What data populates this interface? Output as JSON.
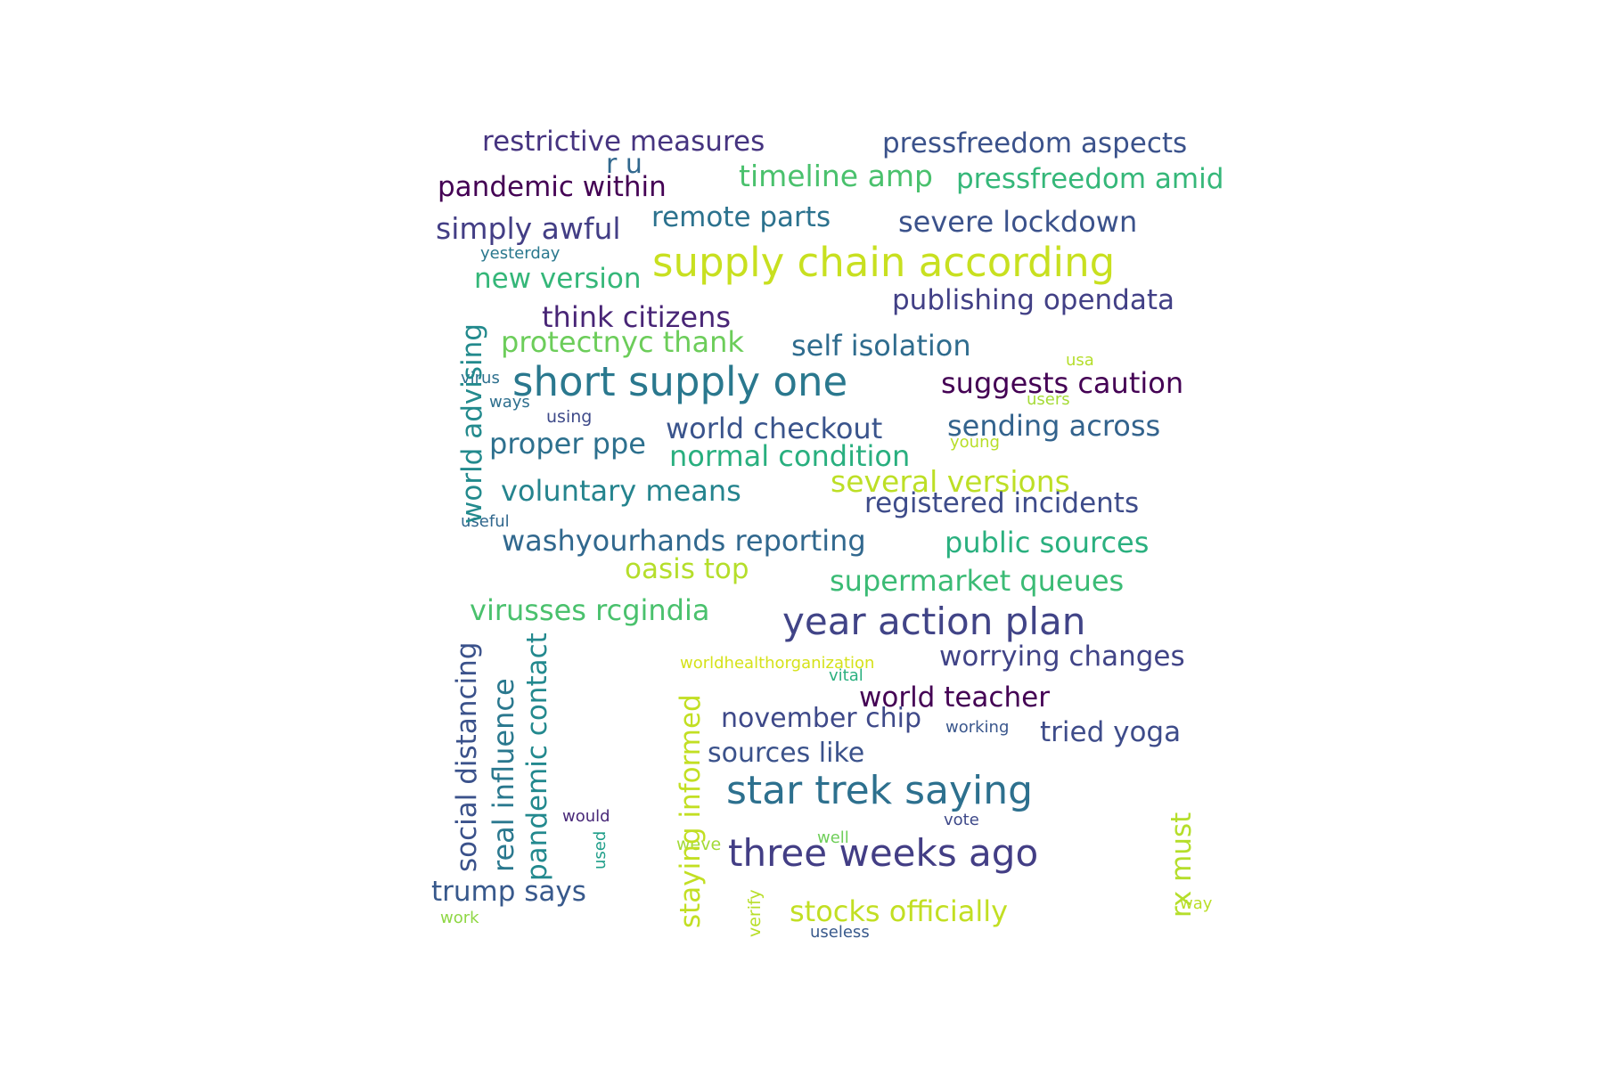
{
  "words": [
    {
      "text": "restrictive measures",
      "color": "#463480"
    },
    {
      "text": "pressfreedom aspects",
      "color": "#3b528b"
    },
    {
      "text": "r u",
      "color": "#31688e"
    },
    {
      "text": "timeline amp",
      "color": "#4ac16d"
    },
    {
      "text": "pressfreedom amid",
      "color": "#35b779"
    },
    {
      "text": "pandemic within",
      "color": "#440154"
    },
    {
      "text": "remote parts",
      "color": "#2c728e"
    },
    {
      "text": "severe lockdown",
      "color": "#3b528b"
    },
    {
      "text": "simply awful",
      "color": "#433e85"
    },
    {
      "text": "yesterday",
      "color": "#2a788e"
    },
    {
      "text": "supply chain according",
      "color": "#c8e020"
    },
    {
      "text": "new version",
      "color": "#35b779"
    },
    {
      "text": "publishing opendata",
      "color": "#424086"
    },
    {
      "text": "think citizens",
      "color": "#482576"
    },
    {
      "text": "protectnyc thank",
      "color": "#6ccd5a"
    },
    {
      "text": "self isolation",
      "color": "#2f6c8e"
    },
    {
      "text": "usa",
      "color": "#b5de2b"
    },
    {
      "text": "virus",
      "color": "#2d708e"
    },
    {
      "text": "short supply one",
      "color": "#2a788e"
    },
    {
      "text": "suggests caution",
      "color": "#440154"
    },
    {
      "text": "ways",
      "color": "#2e6f8e"
    },
    {
      "text": "users",
      "color": "#a5db36"
    },
    {
      "text": "using",
      "color": "#3e4a89"
    },
    {
      "text": "world checkout",
      "color": "#3a548c"
    },
    {
      "text": "sending across",
      "color": "#33638d"
    },
    {
      "text": "proper ppe",
      "color": "#2d708e"
    },
    {
      "text": "young",
      "color": "#b8de29"
    },
    {
      "text": "normal condition",
      "color": "#29af7f"
    },
    {
      "text": "several versions",
      "color": "#bddf26"
    },
    {
      "text": "voluntary means",
      "color": "#25848e"
    },
    {
      "text": "registered incidents",
      "color": "#3e4c8a"
    },
    {
      "text": "useful",
      "color": "#30678d"
    },
    {
      "text": "washyourhands reporting",
      "color": "#31688e"
    },
    {
      "text": "public sources",
      "color": "#2ab07f"
    },
    {
      "text": "oasis top",
      "color": "#b5de2b"
    },
    {
      "text": "supermarket queues",
      "color": "#3bbb75"
    },
    {
      "text": "virusses rcgindia",
      "color": "#4ac16d"
    },
    {
      "text": "year action plan",
      "color": "#414487"
    },
    {
      "text": "worldhealthorganization",
      "color": "#d5e21a"
    },
    {
      "text": "worrying changes",
      "color": "#414487"
    },
    {
      "text": "vital",
      "color": "#2ab07f"
    },
    {
      "text": "world teacher",
      "color": "#440154"
    },
    {
      "text": "november chip",
      "color": "#3e4989"
    },
    {
      "text": "working",
      "color": "#39568c"
    },
    {
      "text": "tried yoga",
      "color": "#3e4c8a"
    },
    {
      "text": "sources like",
      "color": "#3b528b"
    },
    {
      "text": "star trek saying",
      "color": "#2d708e"
    },
    {
      "text": "would",
      "color": "#482878"
    },
    {
      "text": "vote",
      "color": "#3e4989"
    },
    {
      "text": "well",
      "color": "#6ece58"
    },
    {
      "text": "weve",
      "color": "#a2da37"
    },
    {
      "text": "three weeks ago",
      "color": "#433e85"
    },
    {
      "text": "trump says",
      "color": "#38598c"
    },
    {
      "text": "stocks officially",
      "color": "#c2df23"
    },
    {
      "text": "way",
      "color": "#bade28"
    },
    {
      "text": "work",
      "color": "#8fd744"
    },
    {
      "text": "useless",
      "color": "#38598c"
    },
    {
      "text": "world advising",
      "color": "#238a8d"
    },
    {
      "text": "social distancing",
      "color": "#3b528b"
    },
    {
      "text": "real influence",
      "color": "#2a788e"
    },
    {
      "text": "pandemic contact",
      "color": "#23898e"
    },
    {
      "text": "used",
      "color": "#1f9e89"
    },
    {
      "text": "staying informed",
      "color": "#c2df23"
    },
    {
      "text": "verify",
      "color": "#b8de29"
    },
    {
      "text": "rx must",
      "color": "#b5de2b"
    }
  ]
}
